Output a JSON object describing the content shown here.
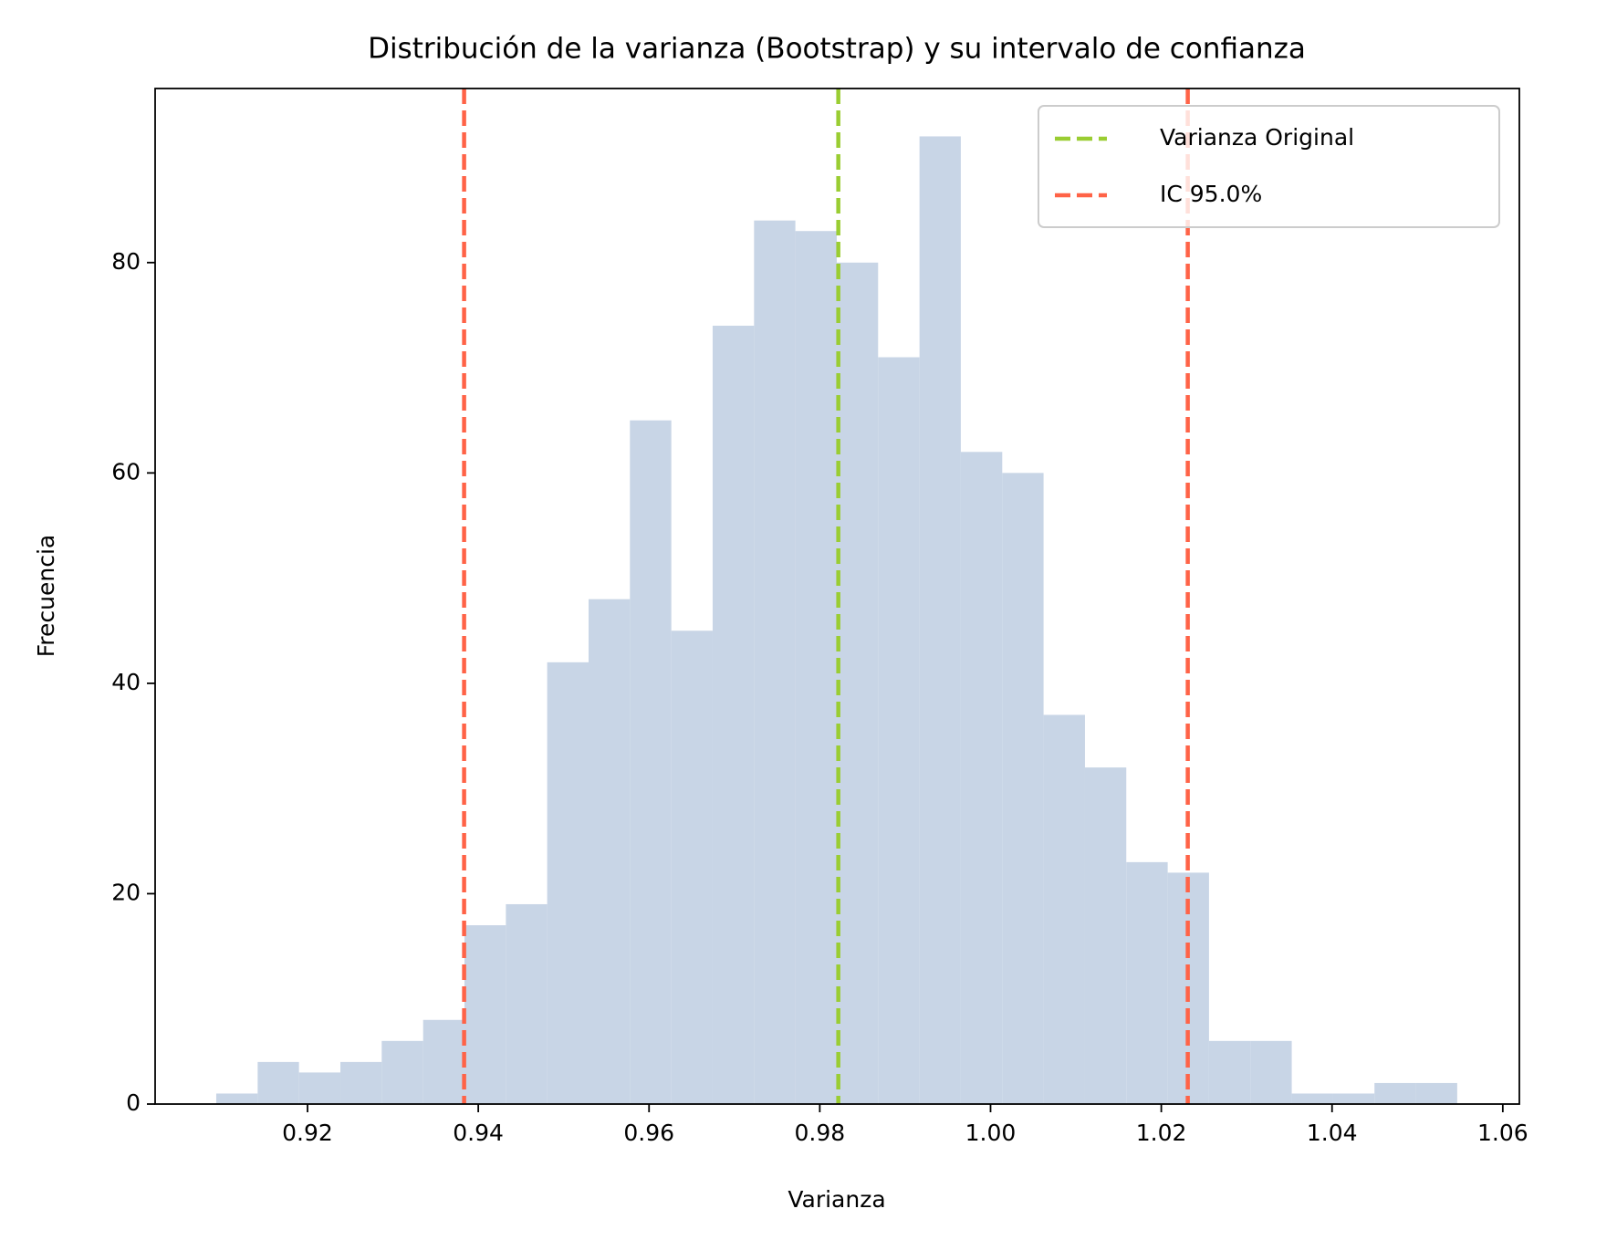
{
  "chart_data": {
    "type": "histogram",
    "title": "Distribución de la varianza (Bootstrap) y su intervalo de confianza",
    "x_label": "Varianza",
    "y_label": "Frecuencia",
    "bins": [
      0.90931,
      0.91416,
      0.919,
      0.92385,
      0.92869,
      0.93354,
      0.93838,
      0.94323,
      0.94807,
      0.95292,
      0.95776,
      0.96261,
      0.96745,
      0.9723,
      0.97714,
      0.98199,
      0.98683,
      0.99168,
      0.99652,
      1.00137,
      1.00621,
      1.01106,
      1.0159,
      1.02075,
      1.02559,
      1.03044,
      1.03528,
      1.04013,
      1.04497,
      1.04982,
      1.05466
    ],
    "values": [
      1,
      4,
      3,
      4,
      6,
      8,
      17,
      19,
      42,
      48,
      65,
      45,
      74,
      84,
      83,
      80,
      71,
      92,
      62,
      60,
      37,
      32,
      23,
      22,
      6,
      6,
      1,
      1,
      2,
      2
    ],
    "color": "#c8d5e6",
    "vlines": [
      {
        "name": "Varianza Original",
        "color": "#9acd32",
        "x": [
          0.98217
        ]
      },
      {
        "name": "IC 95.0%",
        "color": "#ff6347",
        "x": [
          0.93834,
          1.0231
        ]
      }
    ],
    "xlim": [
      0.90215,
      1.06194
    ],
    "ylim": [
      0,
      96.55
    ],
    "xticks": [
      0.92,
      0.94,
      0.96,
      0.98,
      {
        "value": 1.0,
        "label": "1.00"
      },
      1.02,
      1.04,
      1.06
    ],
    "yticks": [
      0,
      20,
      40,
      60,
      80
    ],
    "legend": "upper right"
  }
}
